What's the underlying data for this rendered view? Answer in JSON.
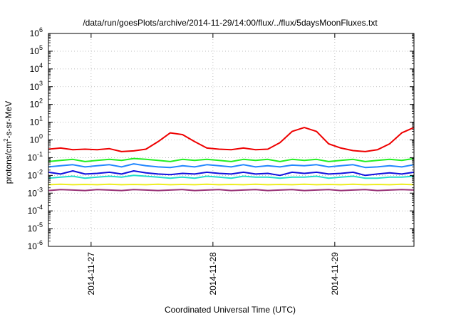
{
  "chart_data": {
    "type": "line",
    "title": "/data/run/goesPlots/archive/2014-11-29/14:00/flux/../flux/5daysMoonFluxes.txt",
    "xlabel": "Coordinated Universal Time (UTC)",
    "ylabel": {
      "prefix": "protons/cm",
      "sup": "2",
      "suffix": "-s-sr-MeV"
    },
    "x_unit": "days since 2014-11-27 00:00 UTC",
    "xlim": [
      -0.35,
      2.65
    ],
    "x_ticks": [
      {
        "value": 0,
        "label": "2014-11-27"
      },
      {
        "value": 1,
        "label": "2014-11-28"
      },
      {
        "value": 2,
        "label": "2014-11-29"
      }
    ],
    "y_scale": "log",
    "ylim": [
      1e-06,
      1000000.0
    ],
    "y_ticks": [
      {
        "exp": -6,
        "base": "10",
        "sup": "-6"
      },
      {
        "exp": -5,
        "base": "10",
        "sup": "-5"
      },
      {
        "exp": -4,
        "base": "10",
        "sup": "-4"
      },
      {
        "exp": -3,
        "base": "10",
        "sup": "-3"
      },
      {
        "exp": -2,
        "base": "10",
        "sup": "-2"
      },
      {
        "exp": -1,
        "base": "10",
        "sup": "-1"
      },
      {
        "exp": 0,
        "base": "10",
        "sup": "0"
      },
      {
        "exp": 1,
        "base": "10",
        "sup": "1"
      },
      {
        "exp": 2,
        "base": "10",
        "sup": "2"
      },
      {
        "exp": 3,
        "base": "10",
        "sup": "3"
      },
      {
        "exp": 4,
        "base": "10",
        "sup": "4"
      },
      {
        "exp": 5,
        "base": "10",
        "sup": "5"
      },
      {
        "exp": 6,
        "base": "10",
        "sup": "6"
      }
    ],
    "grid": true,
    "x": [
      -0.35,
      -0.25,
      -0.15,
      -0.05,
      0.05,
      0.15,
      0.25,
      0.35,
      0.45,
      0.55,
      0.65,
      0.75,
      0.85,
      0.95,
      1.05,
      1.15,
      1.25,
      1.35,
      1.45,
      1.55,
      1.65,
      1.75,
      1.85,
      1.95,
      2.05,
      2.15,
      2.25,
      2.35,
      2.45,
      2.55,
      2.65
    ],
    "series": [
      {
        "color": "#ee0000",
        "values": [
          0.3,
          0.35,
          0.28,
          0.3,
          0.28,
          0.32,
          0.22,
          0.24,
          0.3,
          0.8,
          2.5,
          2.0,
          0.8,
          0.35,
          0.3,
          0.28,
          0.35,
          0.28,
          0.3,
          0.7,
          3.0,
          5.0,
          3.0,
          0.6,
          0.35,
          0.25,
          0.22,
          0.28,
          0.6,
          2.5,
          5.0
        ]
      },
      {
        "color": "#22ee22",
        "values": [
          0.06,
          0.07,
          0.08,
          0.06,
          0.07,
          0.08,
          0.07,
          0.09,
          0.08,
          0.07,
          0.06,
          0.08,
          0.07,
          0.08,
          0.07,
          0.06,
          0.08,
          0.07,
          0.08,
          0.06,
          0.08,
          0.07,
          0.08,
          0.06,
          0.07,
          0.08,
          0.06,
          0.07,
          0.08,
          0.07,
          0.09
        ]
      },
      {
        "color": "#2288ff",
        "values": [
          0.03,
          0.035,
          0.04,
          0.03,
          0.035,
          0.04,
          0.03,
          0.045,
          0.035,
          0.03,
          0.028,
          0.035,
          0.03,
          0.04,
          0.035,
          0.03,
          0.04,
          0.03,
          0.035,
          0.03,
          0.038,
          0.035,
          0.04,
          0.03,
          0.035,
          0.04,
          0.028,
          0.03,
          0.035,
          0.03,
          0.04
        ]
      },
      {
        "color": "#1111dd",
        "values": [
          0.015,
          0.012,
          0.018,
          0.012,
          0.013,
          0.015,
          0.012,
          0.018,
          0.014,
          0.012,
          0.011,
          0.013,
          0.012,
          0.015,
          0.013,
          0.012,
          0.015,
          0.012,
          0.013,
          0.01,
          0.015,
          0.013,
          0.015,
          0.012,
          0.013,
          0.015,
          0.01,
          0.012,
          0.014,
          0.012,
          0.015
        ]
      },
      {
        "color": "#22ddcc",
        "values": [
          0.007,
          0.008,
          0.009,
          0.007,
          0.008,
          0.009,
          0.008,
          0.01,
          0.009,
          0.008,
          0.007,
          0.008,
          0.007,
          0.009,
          0.008,
          0.007,
          0.009,
          0.008,
          0.008,
          0.007,
          0.008,
          0.008,
          0.009,
          0.007,
          0.008,
          0.009,
          0.007,
          0.007,
          0.008,
          0.008,
          0.009
        ]
      },
      {
        "color": "#eeee22",
        "values": [
          0.003,
          0.0032,
          0.003,
          0.0031,
          0.003,
          0.0032,
          0.003,
          0.0031,
          0.003,
          0.0032,
          0.003,
          0.0031,
          0.003,
          0.0032,
          0.003,
          0.0031,
          0.003,
          0.0032,
          0.003,
          0.0031,
          0.003,
          0.0032,
          0.003,
          0.0031,
          0.003,
          0.0032,
          0.003,
          0.0031,
          0.003,
          0.0032,
          0.003
        ]
      },
      {
        "color": "#993377",
        "values": [
          0.0014,
          0.0016,
          0.0015,
          0.0014,
          0.0016,
          0.0015,
          0.0014,
          0.0016,
          0.0015,
          0.0014,
          0.0015,
          0.0016,
          0.0014,
          0.0015,
          0.0016,
          0.0014,
          0.0015,
          0.0016,
          0.0014,
          0.0015,
          0.0016,
          0.0014,
          0.0015,
          0.0016,
          0.0014,
          0.0015,
          0.0016,
          0.0014,
          0.0015,
          0.0016,
          0.0015
        ]
      }
    ]
  }
}
